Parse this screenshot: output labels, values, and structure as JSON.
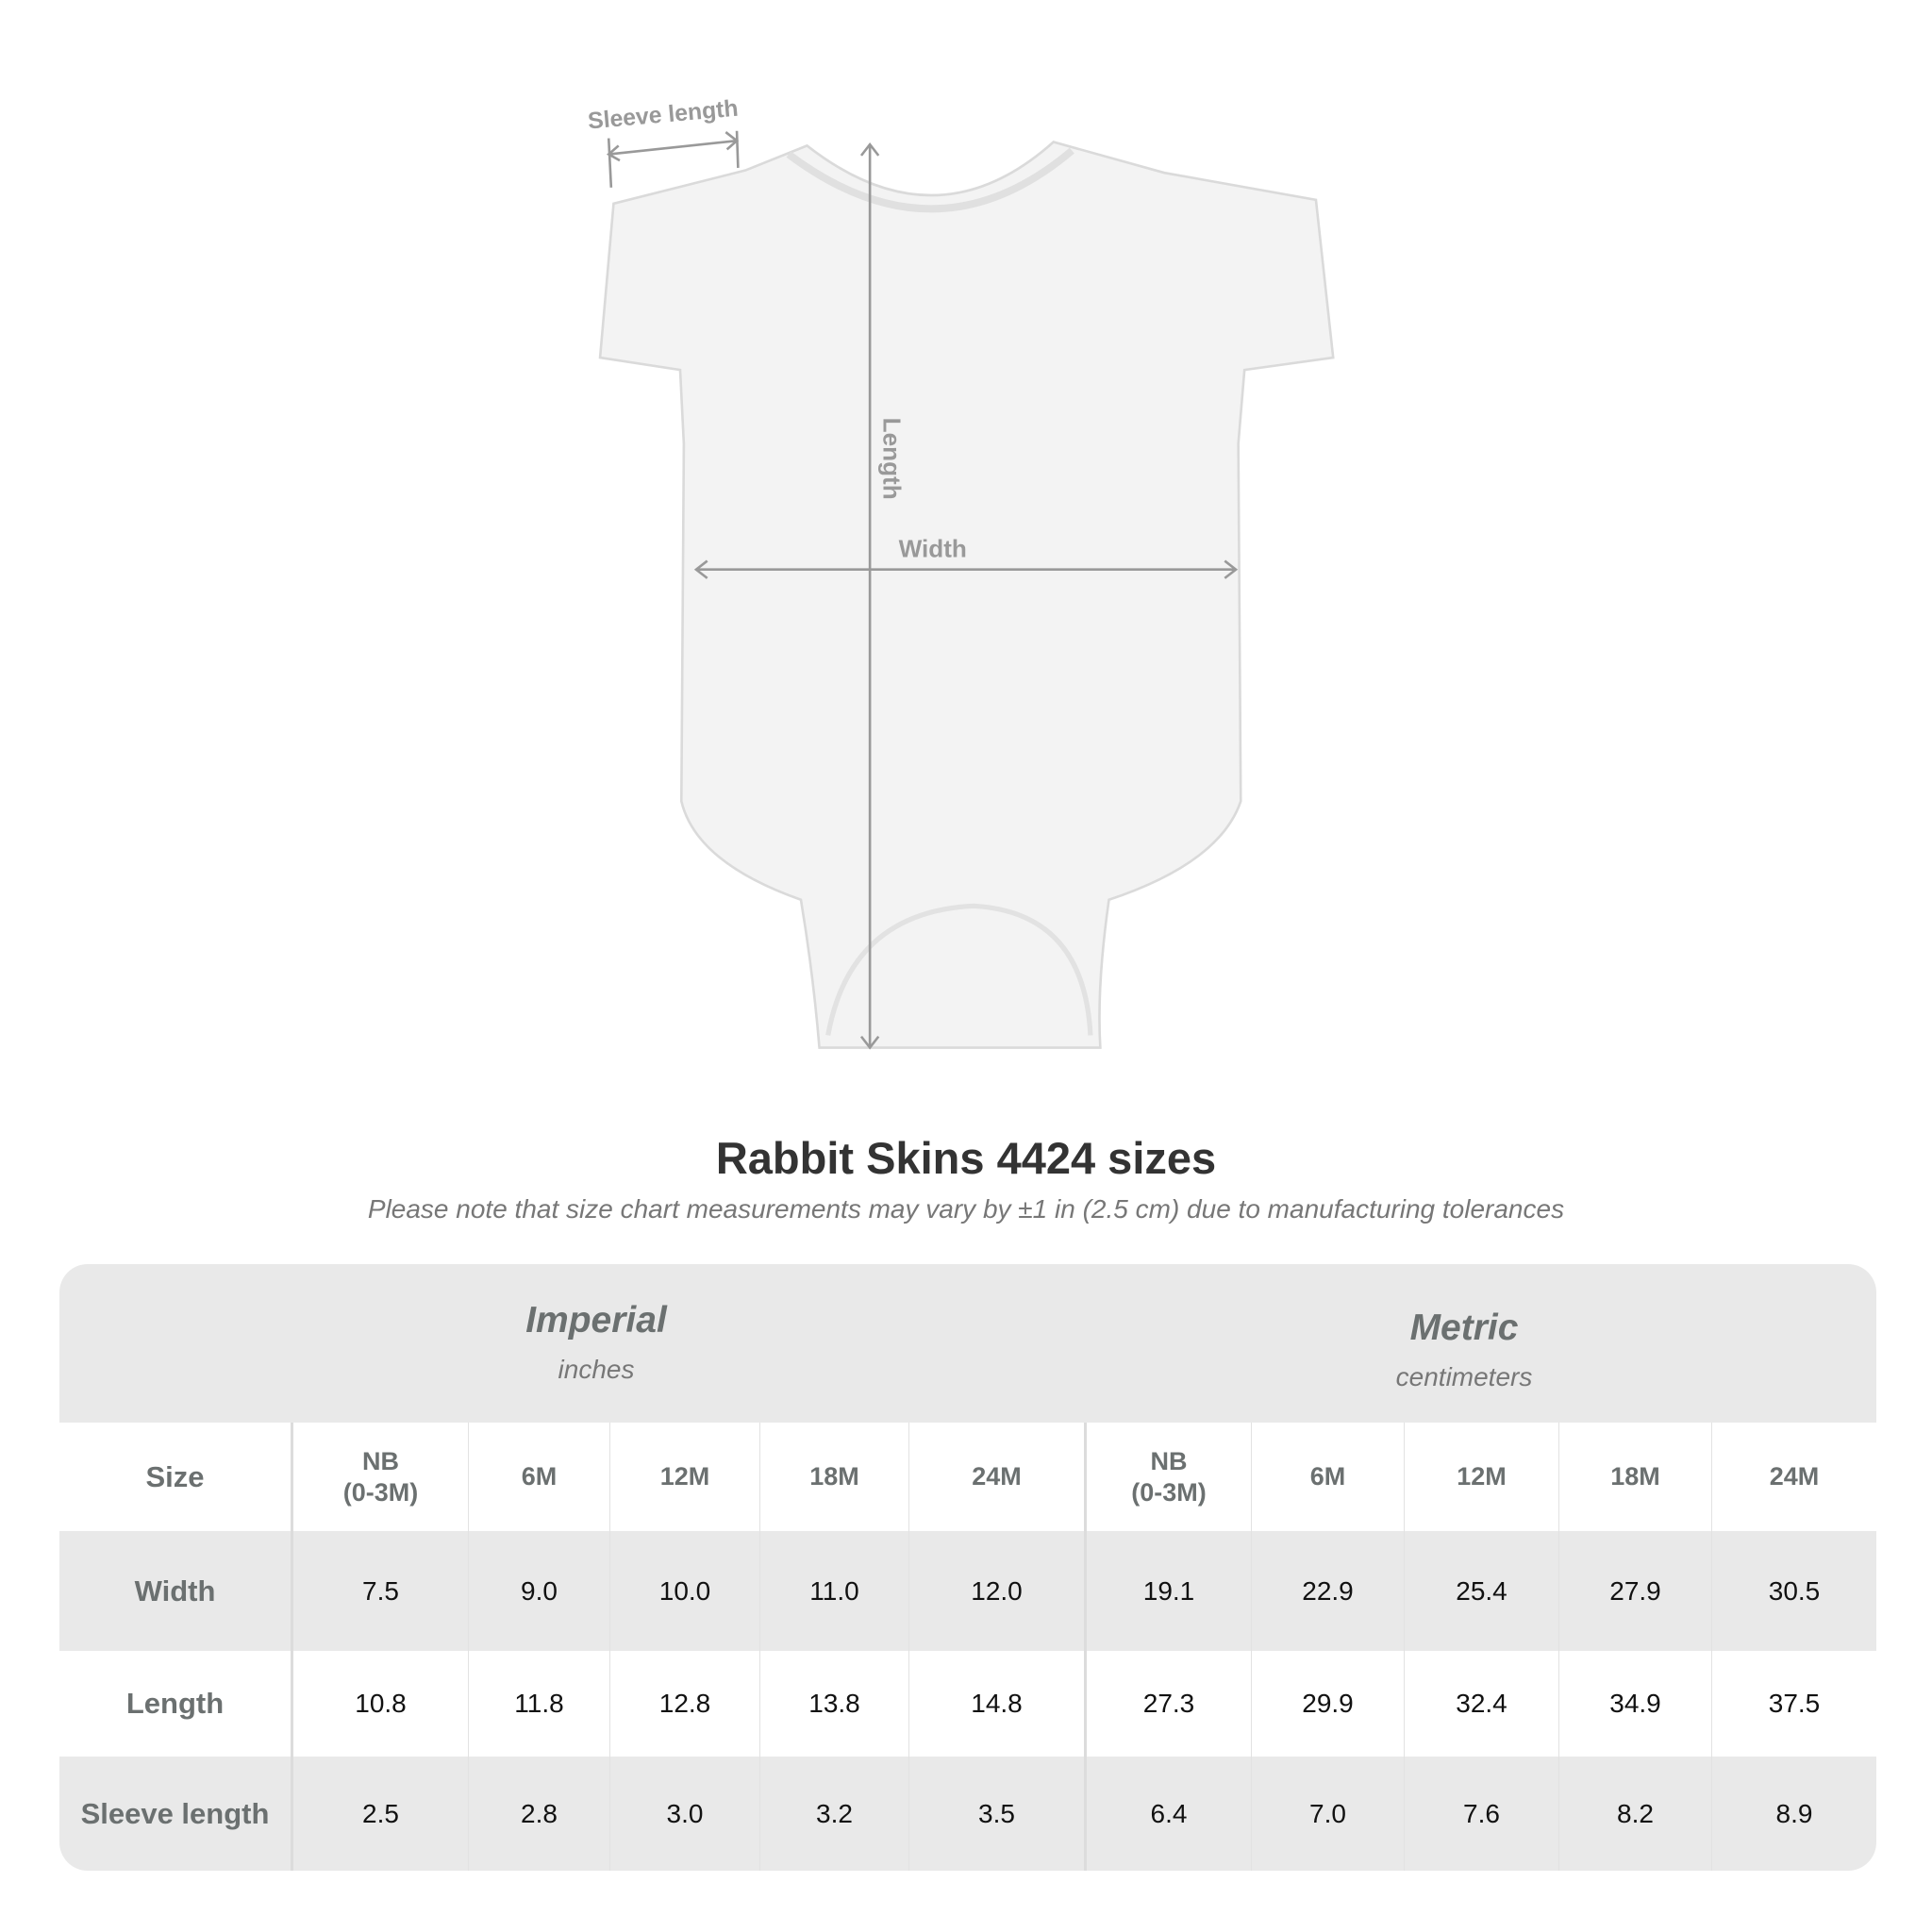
{
  "diagram": {
    "labels": {
      "sleeve": "Sleeve length",
      "length": "Length",
      "width": "Width"
    }
  },
  "title": "Rabbit Skins 4424 sizes",
  "note": "Please note that size chart measurements may vary by ±1 in (2.5 cm) due to manufacturing tolerances",
  "table": {
    "imperial": {
      "title": "Imperial",
      "unit": "inches"
    },
    "metric": {
      "title": "Metric",
      "unit": "centimeters"
    },
    "size_label": "Size",
    "sizes": [
      "NB\n(0-3M)",
      "6M",
      "12M",
      "18M",
      "24M",
      "NB\n(0-3M)",
      "6M",
      "12M",
      "18M",
      "24M"
    ],
    "rows": [
      {
        "label": "Width",
        "values": [
          "7.5",
          "9.0",
          "10.0",
          "11.0",
          "12.0",
          "19.1",
          "22.9",
          "25.4",
          "27.9",
          "30.5"
        ]
      },
      {
        "label": "Length",
        "values": [
          "10.8",
          "11.8",
          "12.8",
          "13.8",
          "14.8",
          "27.3",
          "29.9",
          "32.4",
          "34.9",
          "37.5"
        ]
      },
      {
        "label": "Sleeve length",
        "values": [
          "2.5",
          "2.8",
          "3.0",
          "3.2",
          "3.5",
          "6.4",
          "7.0",
          "7.6",
          "8.2",
          "8.9"
        ]
      }
    ]
  }
}
